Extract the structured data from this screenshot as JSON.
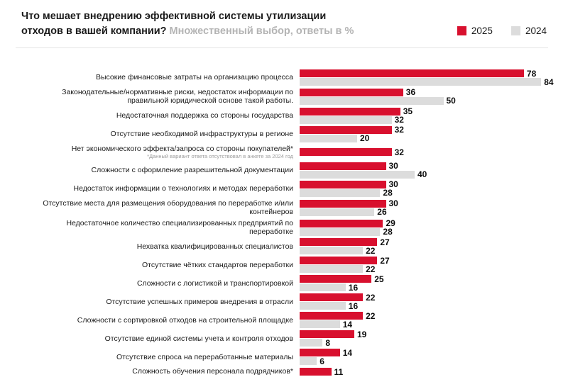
{
  "header": {
    "title_line1": "Что мешает внедрению эффективной системы утилизации",
    "title_line2_bold": "отходов в вашей компании?",
    "title_line2_gray": "Множественный выбор, ответы в %",
    "legend": [
      {
        "label": "2025",
        "color": "#D8102E"
      },
      {
        "label": "2024",
        "color": "#DCDCDC"
      }
    ]
  },
  "chart_data": {
    "type": "bar",
    "orientation": "horizontal",
    "title": "Что мешает внедрению эффективной системы утилизации отходов в вашей компании?",
    "subtitle": "Множественный выбор, ответы в %",
    "series_names": [
      "2025",
      "2024"
    ],
    "colors": {
      "2025": "#D8102E",
      "2024": "#DCDCDC"
    },
    "xlim": [
      0,
      85
    ],
    "legend_position": "top-right",
    "grid": false,
    "footnote": "*Данный вариант ответа отсутствовал в анкете за 2024 год",
    "items": [
      {
        "label": "Высокие финансовые затраты на организацию процесса",
        "v2025": 78,
        "v2024": 84
      },
      {
        "label": "Законодательные/нормативные риски, недостаток информации по правильной юридической основе такой работы.",
        "v2025": 36,
        "v2024": 50
      },
      {
        "label": "Недостаточная поддержка со стороны государства",
        "v2025": 35,
        "v2024": 32
      },
      {
        "label": "Отсутствие необходимой инфраструктуры в регионе",
        "v2025": 32,
        "v2024": 20
      },
      {
        "label": "Нет экономического эффекта/запроса со стороны покупателей*",
        "note": "*Данный вариант ответа отсутствовал в анкете за 2024 год",
        "v2025": 32,
        "v2024": null
      },
      {
        "label": "Сложности с оформление разрешительной документации",
        "v2025": 30,
        "v2024": 40
      },
      {
        "label": "Недостаток информации о технологиях и методах переработки",
        "v2025": 30,
        "v2024": 28
      },
      {
        "label": "Отсутствие места для размещения оборудования по переработке и/или контейнеров",
        "v2025": 30,
        "v2024": 26
      },
      {
        "label": "Недостаточное количество специализированных предприятий по переработке",
        "v2025": 29,
        "v2024": 28
      },
      {
        "label": "Нехватка квалифицированных специалистов",
        "v2025": 27,
        "v2024": 22
      },
      {
        "label": "Отсутствие чётких стандартов переработки",
        "v2025": 27,
        "v2024": 22
      },
      {
        "label": "Сложности с логистикой и транспортировкой",
        "v2025": 25,
        "v2024": 16
      },
      {
        "label": "Отсутствие успешных примеров внедрения в отрасли",
        "v2025": 22,
        "v2024": 16
      },
      {
        "label": "Сложности с сортировкой отходов на строительной площадке",
        "v2025": 22,
        "v2024": 14
      },
      {
        "label": "Отсутствие единой системы учета и контроля отходов",
        "v2025": 19,
        "v2024": 8
      },
      {
        "label": "Отсутствие спроса на переработанные материалы",
        "v2025": 14,
        "v2024": 6
      },
      {
        "label": "Сложность обучения персонала подрядчиков*",
        "v2025": 11,
        "v2024": null
      }
    ]
  }
}
